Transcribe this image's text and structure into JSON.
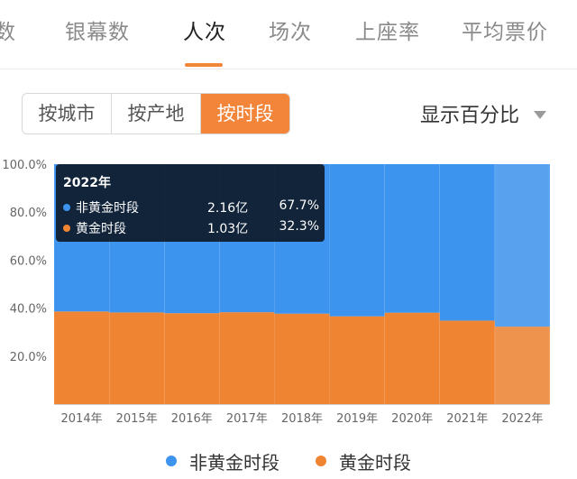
{
  "tabs": [
    {
      "label": "数"
    },
    {
      "label": "银幕数"
    },
    {
      "label": "人次"
    },
    {
      "label": "场次"
    },
    {
      "label": "上座率"
    },
    {
      "label": "平均票价"
    }
  ],
  "active_tab": "人次",
  "segments": [
    {
      "label": "按城市"
    },
    {
      "label": "按产地"
    },
    {
      "label": "按时段"
    }
  ],
  "active_segment": "按时段",
  "dropdown": {
    "label": "显示百分比"
  },
  "colors": {
    "accent": "#f2853a",
    "series_blue": "#3d94ee",
    "series_orange": "#ef8433",
    "tooltip_bg": "#0c121c"
  },
  "tooltip": {
    "title": "2022年",
    "rows": [
      {
        "name": "非黄金时段",
        "value": "2.16亿",
        "pct": "67.7%"
      },
      {
        "name": "黄金时段",
        "value": "1.03亿",
        "pct": "32.3%"
      }
    ]
  },
  "chart_data": {
    "type": "bar",
    "stacked": true,
    "categories": [
      "2014年",
      "2015年",
      "2016年",
      "2017年",
      "2018年",
      "2019年",
      "2020年",
      "2021年",
      "2022年"
    ],
    "series": [
      {
        "name": "黄金时段",
        "color": "#ef8433",
        "values": [
          38.6,
          38.2,
          37.9,
          38.3,
          37.7,
          36.6,
          38.1,
          34.8,
          32.3
        ]
      },
      {
        "name": "非黄金时段",
        "color": "#3d94ee",
        "values": [
          61.4,
          61.8,
          62.1,
          61.7,
          62.3,
          63.4,
          61.9,
          65.2,
          67.7
        ]
      }
    ],
    "ylim": [
      0,
      100
    ],
    "yticks": [
      "100.0%",
      "80.0%",
      "60.0%",
      "40.0%",
      "20.0%"
    ],
    "highlight_category": "2022年",
    "legend_position": "bottom"
  }
}
